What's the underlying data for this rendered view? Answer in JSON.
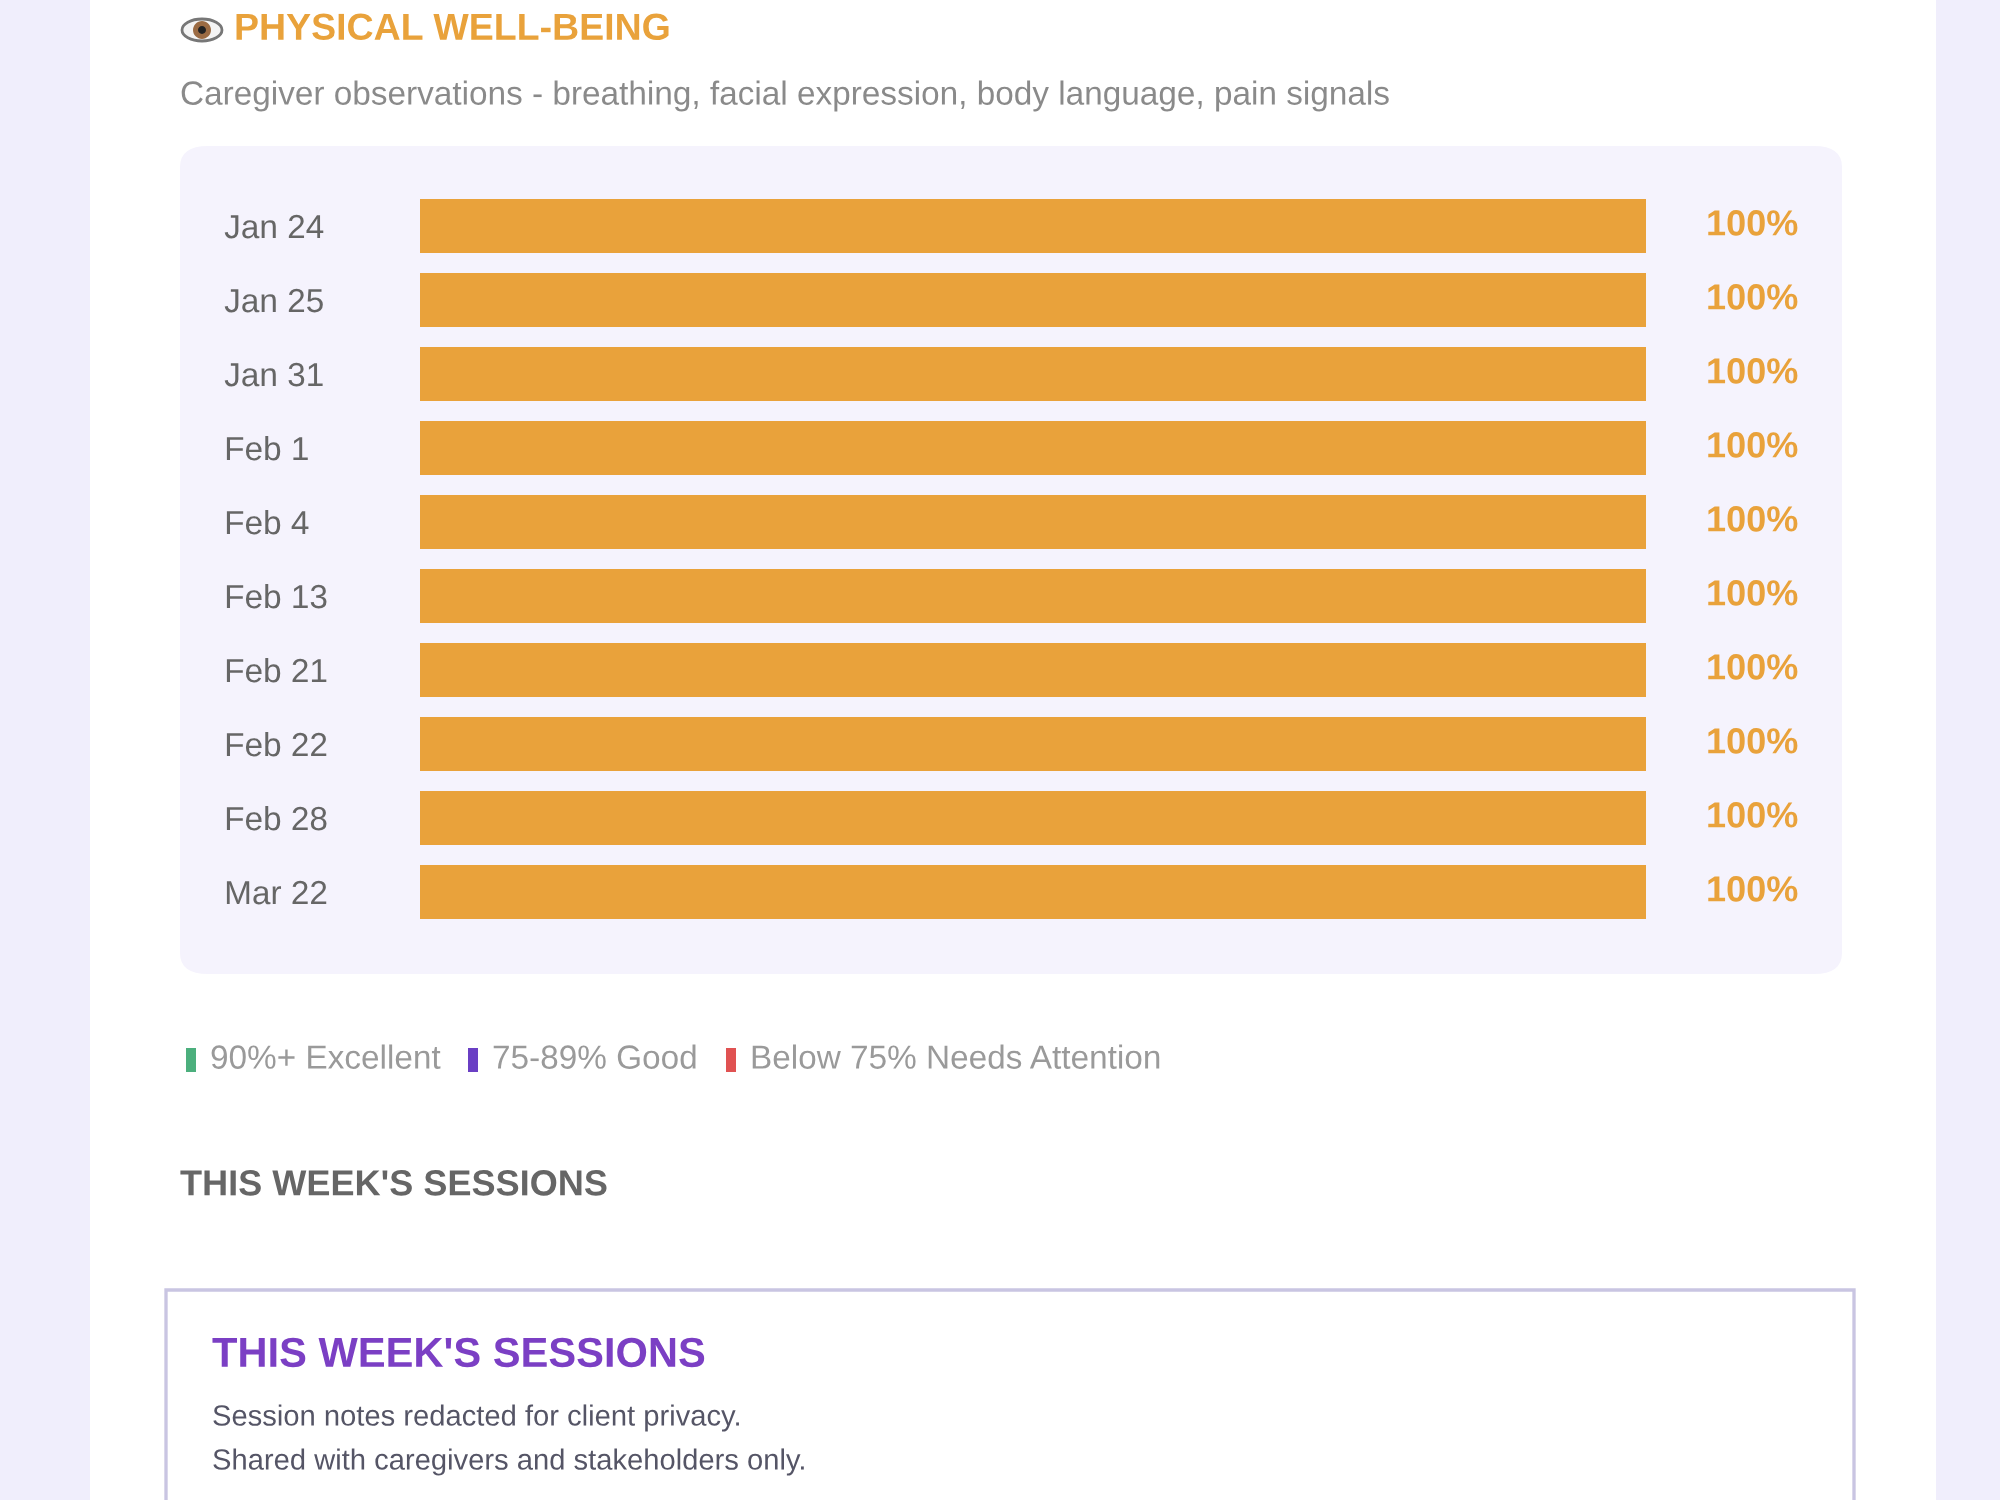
{
  "chart_data": {
    "type": "bar",
    "orientation": "horizontal",
    "title": "PHYSICAL WELL-BEING",
    "subtitle": "Caregiver observations - breathing, facial expression, body language, pain signals",
    "categories": [
      "Jan 24",
      "Jan 25",
      "Jan 31",
      "Feb 1",
      "Feb 4",
      "Feb 13",
      "Feb 21",
      "Feb 22",
      "Feb 28",
      "Mar 22"
    ],
    "values": [
      100,
      100,
      100,
      100,
      100,
      100,
      100,
      100,
      100,
      100
    ],
    "value_labels": [
      "100%",
      "100%",
      "100%",
      "100%",
      "100%",
      "100%",
      "100%",
      "100%",
      "100%",
      "100%"
    ],
    "color": "#e9a23b",
    "annotations": [
      "90%+ Excellent",
      "75-89% Good",
      "Below 75% Needs Attention",
      "THIS WEEK'S SESSIONS",
      "THIS WEEK'S SESSIONS",
      "Session notes redacted for client privacy.",
      "Shared with caregivers and stakeholders only."
    ]
  }
}
